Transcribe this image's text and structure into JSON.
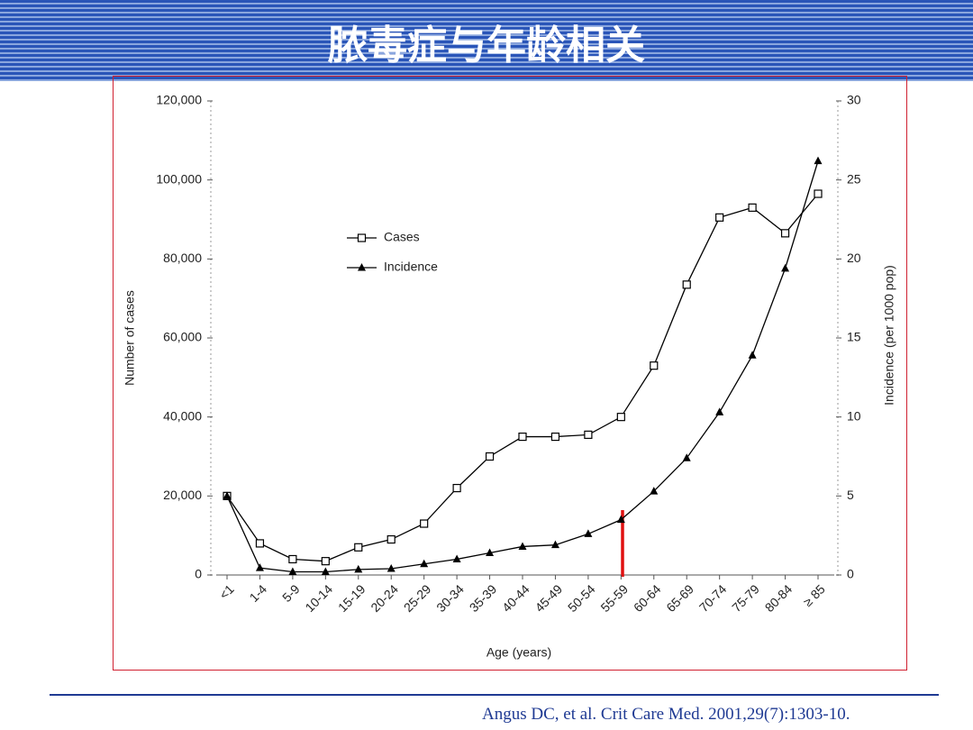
{
  "header": {
    "title": "脓毒症与年龄相关"
  },
  "chart_data": {
    "type": "line",
    "ylabel": "Number of cases",
    "y2label": "Incidence (per 1000 pop)",
    "xlabel": "Age (years)",
    "categories": [
      "<1",
      "1-4",
      "5-9",
      "10-14",
      "15-19",
      "20-24",
      "25-29",
      "30-34",
      "35-39",
      "40-44",
      "45-49",
      "50-54",
      "55-59",
      "60-64",
      "65-69",
      "70-74",
      "75-79",
      "80-84",
      "≥ 85"
    ],
    "series": [
      {
        "name": "Cases",
        "color": "#000000",
        "marker": "square",
        "values": [
          20000,
          8000,
          4000,
          3500,
          7000,
          9000,
          13000,
          22000,
          30000,
          35000,
          35000,
          35500,
          40000,
          53000,
          73500,
          90500,
          93000,
          86500,
          96500
        ]
      },
      {
        "name": "Incidence",
        "color": "#000000",
        "marker": "triangle",
        "axis": "y2",
        "values": [
          5,
          0.45,
          0.2,
          0.2,
          0.35,
          0.4,
          0.7,
          1.0,
          1.4,
          1.8,
          1.9,
          2.6,
          3.5,
          5.3,
          7.4,
          10.3,
          13.9,
          19.4,
          26.2
        ]
      }
    ],
    "ylim": [
      0,
      120000
    ],
    "yticks": [
      0,
      {
        "value": 20000,
        "label": "20,000"
      },
      {
        "value": 40000,
        "label": "40,000"
      },
      {
        "value": 60000,
        "label": "60,000"
      },
      {
        "value": 80000,
        "label": "80,000"
      },
      {
        "value": 100000,
        "label": "100,000"
      },
      {
        "value": 120000,
        "label": "120,000"
      }
    ],
    "y2lim": [
      0,
      30
    ],
    "y2ticks": [
      0,
      5,
      10,
      15,
      20,
      25,
      30
    ],
    "legend": "upper-left"
  },
  "footer": {
    "citation": "Angus DC, et al. Crit Care Med. 2001,29(7):1303-10."
  }
}
